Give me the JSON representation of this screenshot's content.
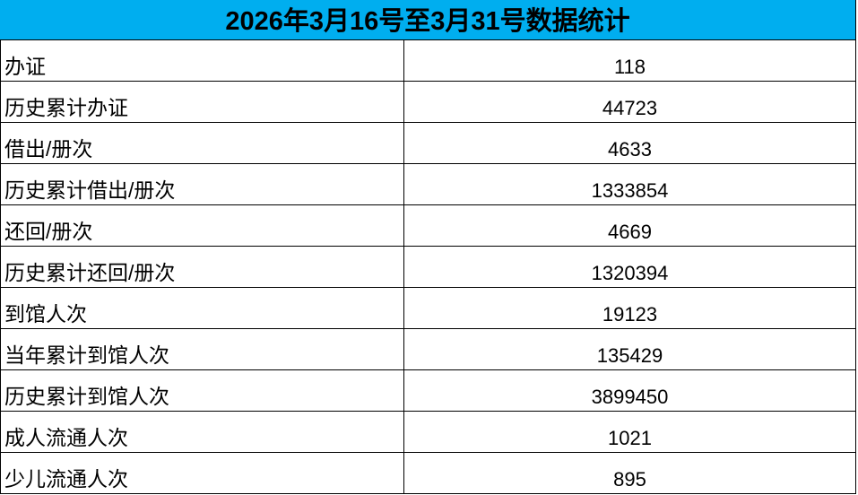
{
  "title": "2026年3月16号至3月31号数据统计",
  "header_color": "#00AEEF",
  "rows": [
    {
      "label": "办证",
      "value": "118"
    },
    {
      "label": "历史累计办证",
      "value": "44723"
    },
    {
      "label": "借出/册次",
      "value": "4633"
    },
    {
      "label": "历史累计借出/册次",
      "value": "1333854"
    },
    {
      "label": "还回/册次",
      "value": "4669"
    },
    {
      "label": "历史累计还回/册次",
      "value": "1320394"
    },
    {
      "label": "到馆人次",
      "value": "19123"
    },
    {
      "label": "当年累计到馆人次",
      "value": "135429"
    },
    {
      "label": "历史累计到馆人次",
      "value": "3899450"
    },
    {
      "label": "成人流通人次",
      "value": "1021"
    },
    {
      "label": "少儿流通人次",
      "value": "895"
    }
  ]
}
